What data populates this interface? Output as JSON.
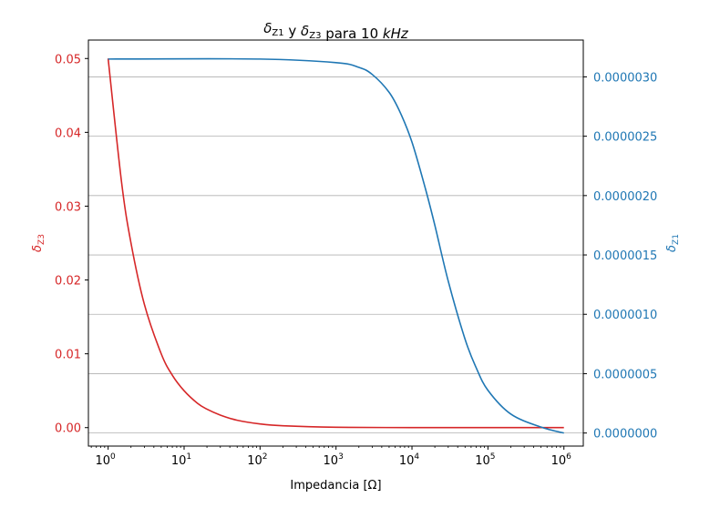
{
  "chart_data": {
    "type": "line",
    "title": {
      "parts": [
        {
          "text": "δ",
          "italic": true
        },
        {
          "text": "Z1",
          "sub": true
        },
        {
          "text": " y "
        },
        {
          "text": "δ",
          "italic": true
        },
        {
          "text": "Z3",
          "sub": true
        },
        {
          "text": " para 10 "
        },
        {
          "text": "kHz",
          "italic": true
        }
      ]
    },
    "xlabel": "Impedancia [Ω]",
    "ylabel_left": {
      "symbol": "δ",
      "sub": "Z3"
    },
    "ylabel_right": {
      "symbol": "δ",
      "sub": "Z1"
    },
    "x_scale": "log",
    "xlim": [
      0.55,
      1800000
    ],
    "x_ticks": [
      {
        "value": 1,
        "base": "10",
        "exp": "0"
      },
      {
        "value": 10,
        "base": "10",
        "exp": "1"
      },
      {
        "value": 100,
        "base": "10",
        "exp": "2"
      },
      {
        "value": 1000,
        "base": "10",
        "exp": "3"
      },
      {
        "value": 10000,
        "base": "10",
        "exp": "4"
      },
      {
        "value": 100000,
        "base": "10",
        "exp": "5"
      },
      {
        "value": 1000000,
        "base": "10",
        "exp": "6"
      }
    ],
    "ylim_left": [
      -0.0025,
      0.0525
    ],
    "yticks_left": [
      {
        "value": 0.0,
        "label": "0.00"
      },
      {
        "value": 0.01,
        "label": "0.01"
      },
      {
        "value": 0.02,
        "label": "0.02"
      },
      {
        "value": 0.03,
        "label": "0.03"
      },
      {
        "value": 0.04,
        "label": "0.04"
      },
      {
        "value": 0.05,
        "label": "0.05"
      }
    ],
    "ylim_right": [
      -1.1e-07,
      3.31e-06
    ],
    "yticks_right": [
      {
        "value": 0.0,
        "label": "0.0000000"
      },
      {
        "value": 5e-07,
        "label": "0.0000005"
      },
      {
        "value": 1e-06,
        "label": "0.0000010"
      },
      {
        "value": 1.5e-06,
        "label": "0.0000015"
      },
      {
        "value": 2e-06,
        "label": "0.0000020"
      },
      {
        "value": 2.5e-06,
        "label": "0.0000025"
      },
      {
        "value": 3e-06,
        "label": "0.0000030"
      }
    ],
    "grid": "horizontal lines at right-axis ticks",
    "series": [
      {
        "axis": "left",
        "color": "#d62728",
        "x": [
          1,
          1.5,
          2,
          3,
          5,
          7,
          10,
          15,
          20,
          30,
          50,
          100,
          200,
          1000,
          10000,
          100000,
          1000000
        ],
        "y": [
          0.05,
          0.0333,
          0.025,
          0.0167,
          0.01,
          0.0071,
          0.005,
          0.0033,
          0.0025,
          0.0017,
          0.001,
          0.0005,
          0.00025,
          5e-05,
          5e-06,
          5e-07,
          5e-08
        ]
      },
      {
        "axis": "right",
        "color": "#1f77b4",
        "x": [
          1,
          100,
          1000,
          2000,
          3000,
          5000,
          7000,
          10000,
          15000,
          20000,
          30000,
          50000,
          70000,
          100000,
          200000,
          500000,
          1000000
        ],
        "y": [
          3.15e-06,
          3.15e-06,
          3.12e-06,
          3.08e-06,
          3.02e-06,
          2.87e-06,
          2.7e-06,
          2.45e-06,
          2.06e-06,
          1.75e-06,
          1.28e-06,
          7.9e-07,
          5.5e-07,
          3.6e-07,
          1.6e-07,
          5e-08,
          0.0
        ]
      }
    ]
  }
}
